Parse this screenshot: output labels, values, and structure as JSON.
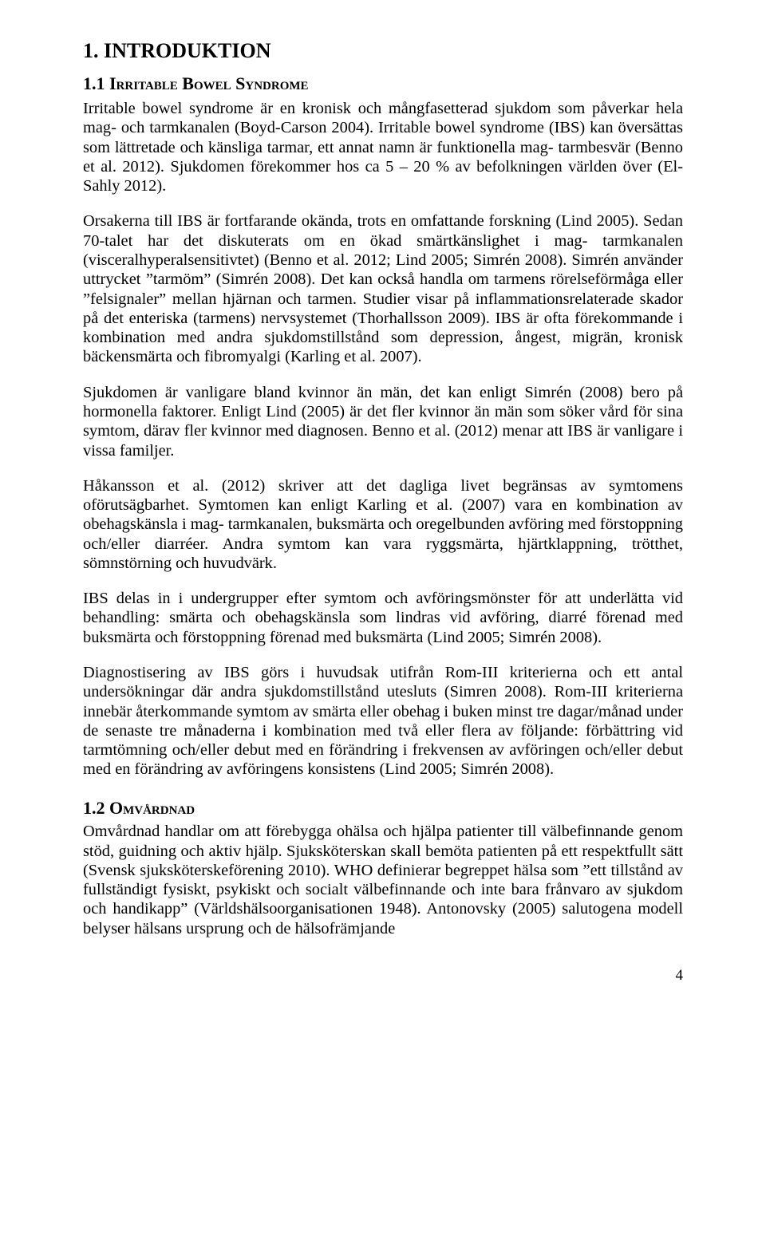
{
  "heading_main": "1. INTRODUKTION",
  "heading_sub1": "1.1 Irritable Bowel Syndrome",
  "heading_sub2": "1.2 Omvårdnad",
  "p1": "Irritable bowel syndrome är en kronisk och mångfasetterad sjukdom som påverkar hela mag- och tarmkanalen (Boyd-Carson 2004). Irritable bowel syndrome (IBS) kan översättas som lättretade och känsliga tarmar, ett annat namn är funktionella mag- tarmbesvär (Benno et al. 2012). Sjukdomen förekommer hos ca 5 – 20 % av befolkningen världen över (El-Sahly 2012).",
  "p2": "Orsakerna till IBS är fortfarande okända, trots en omfattande forskning (Lind 2005). Sedan 70-talet har det diskuterats om en ökad smärtkänslighet i mag- tarmkanalen (visceralhyperalsensitivtet) (Benno et al. 2012; Lind 2005; Simrén 2008). Simrén använder uttrycket ”tarmöm” (Simrén 2008). Det kan också handla om tarmens rörelseförmåga eller ”felsignaler” mellan hjärnan och tarmen. Studier visar på inflammationsrelaterade skador på det enteriska (tarmens) nervsystemet (Thorhallsson 2009). IBS är ofta förekommande i kombination med andra sjukdomstillstånd som depression, ångest, migrän, kronisk bäckensmärta och fibromyalgi (Karling et al. 2007).",
  "p3": "Sjukdomen är vanligare bland kvinnor än män, det kan enligt Simrén (2008) bero på hormonella faktorer. Enligt Lind (2005) är det fler kvinnor än män som söker vård för sina symtom, därav fler kvinnor med diagnosen. Benno et al. (2012) menar att IBS är vanligare i vissa familjer.",
  "p4": "Håkansson et al. (2012) skriver att det dagliga livet begränsas av symtomens oförutsägbarhet. Symtomen kan enligt Karling et al. (2007) vara en kombination av obehagskänsla i mag- tarmkanalen, buksmärta och oregelbunden avföring med förstoppning och/eller diarréer. Andra symtom kan vara ryggsmärta, hjärtklappning, trötthet, sömnstörning och huvudvärk.",
  "p5": "IBS delas in i undergrupper efter symtom och avföringsmönster för att underlätta vid behandling: smärta och obehagskänsla som lindras vid avföring, diarré förenad med buksmärta och förstoppning förenad med buksmärta (Lind 2005; Simrén 2008).",
  "p6": "Diagnostisering av IBS görs i huvudsak utifrån Rom-III kriterierna och ett antal undersökningar där andra sjukdomstillstånd utesluts (Simren 2008). Rom-III kriterierna innebär återkommande symtom av smärta eller obehag i buken minst tre dagar/månad under de senaste tre månaderna i kombination med två eller flera av följande: förbättring vid tarmtömning och/eller debut med en förändring i frekvensen av avföringen och/eller debut med en förändring av avföringens konsistens (Lind 2005; Simrén 2008).",
  "p7": "Omvårdnad handlar om att förebygga ohälsa och hjälpa patienter till välbefinnande genom stöd, guidning och aktiv hjälp. Sjuksköterskan skall bemöta patienten på ett respektfullt sätt (Svensk sjuksköterskeförening 2010). WHO definierar begreppet hälsa som ”ett tillstånd av fullständigt fysiskt, psykiskt och socialt välbefinnande och inte bara frånvaro av sjukdom och handikapp” (Världshälsoorganisationen 1948). Antonovsky (2005) salutogena modell belyser hälsans ursprung och de hälsofrämjande",
  "page_number": "4"
}
